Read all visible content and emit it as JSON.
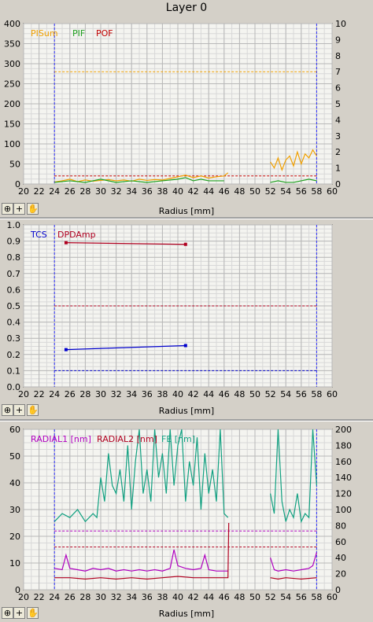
{
  "title": "Layer 0",
  "toolbar_icons": [
    "zoom-icon",
    "crosshair-icon",
    "hand-icon"
  ],
  "colors": {
    "pisum": "#f0a000",
    "pif": "#20a020",
    "pof": "#c00000",
    "tcs": "#0000cc",
    "dpdamp": "#b00020",
    "radial1": "#b000c0",
    "radial2": "#b00020",
    "fe": "#10a080",
    "limit_blue": "#3030ff",
    "grid": "#c0c0c0"
  },
  "chart_data": [
    {
      "type": "line",
      "xlabel": "Radius [mm]",
      "xlim": [
        20,
        60
      ],
      "xticks": [
        20,
        22,
        24,
        26,
        28,
        30,
        32,
        34,
        36,
        38,
        40,
        42,
        44,
        46,
        48,
        50,
        52,
        54,
        56,
        58,
        60
      ],
      "ylim_left": [
        0,
        400
      ],
      "yticks_left": [
        0,
        50,
        100,
        150,
        200,
        250,
        300,
        350,
        400
      ],
      "ylim_right": [
        0,
        10
      ],
      "yticks_right": [
        0,
        1,
        2,
        3,
        4,
        5,
        6,
        7,
        8,
        9,
        10
      ],
      "legend": [
        "PISum",
        "PIF",
        "POF"
      ],
      "vlines": [
        24,
        58
      ],
      "hlines": [
        {
          "value": 280,
          "series": "PISum"
        },
        {
          "value": 20,
          "series": "POF"
        }
      ],
      "series": [
        {
          "name": "PISum",
          "axis": "left",
          "segments": [
            {
              "x": [
                24,
                25,
                26,
                27,
                28,
                29,
                30,
                31,
                32,
                33,
                34,
                35,
                36,
                37,
                38,
                39,
                40,
                41,
                42,
                43,
                44,
                45,
                46,
                46.5
              ],
              "y": [
                5,
                8,
                12,
                6,
                10,
                7,
                9,
                11,
                8,
                10,
                7,
                12,
                9,
                11,
                10,
                14,
                18,
                22,
                16,
                20,
                15,
                18,
                20,
                28
              ]
            },
            {
              "x": [
                52,
                52.5,
                53,
                53.5,
                54,
                54.5,
                55,
                55.5,
                56,
                56.5,
                57,
                57.5,
                58
              ],
              "y": [
                55,
                40,
                65,
                35,
                60,
                70,
                45,
                80,
                50,
                75,
                65,
                85,
                70
              ]
            }
          ]
        },
        {
          "name": "PIF",
          "axis": "right",
          "segments": [
            {
              "x": [
                24,
                26,
                28,
                30,
                32,
                34,
                36,
                38,
                40,
                41,
                42,
                43,
                44,
                46
              ],
              "y": [
                0.1,
                0.2,
                0.1,
                0.3,
                0.1,
                0.2,
                0.1,
                0.2,
                0.3,
                0.4,
                0.2,
                0.3,
                0.2,
                0.2
              ]
            },
            {
              "x": [
                52,
                53,
                54,
                55,
                56,
                57,
                58
              ],
              "y": [
                0.1,
                0.2,
                0.1,
                0.1,
                0.2,
                0.3,
                0.2
              ]
            }
          ]
        }
      ]
    },
    {
      "type": "line",
      "xlabel": "Radius [mm]",
      "xlim": [
        20,
        60
      ],
      "xticks": [
        20,
        22,
        24,
        26,
        28,
        30,
        32,
        34,
        36,
        38,
        40,
        42,
        44,
        46,
        48,
        50,
        52,
        54,
        56,
        58,
        60
      ],
      "ylim": [
        0,
        1.0
      ],
      "yticks": [
        "0.0",
        "0.1",
        "0.2",
        "0.3",
        "0.4",
        "0.5",
        "0.6",
        "0.7",
        "0.8",
        "0.9",
        "1.0"
      ],
      "legend": [
        "TCS",
        "DPDAmp"
      ],
      "vlines": [
        24,
        58
      ],
      "hlines": [
        {
          "value": 0.1,
          "series": "TCS"
        },
        {
          "value": 0.5,
          "series": "DPDAmp"
        }
      ],
      "series": [
        {
          "name": "TCS",
          "x": [
            25.5,
            41
          ],
          "y": [
            0.23,
            0.255
          ]
        },
        {
          "name": "DPDAmp",
          "x": [
            25.5,
            41
          ],
          "y": [
            0.89,
            0.88
          ]
        }
      ]
    },
    {
      "type": "line",
      "xlabel": "Radius [mm]",
      "xlim": [
        20,
        60
      ],
      "xticks": [
        20,
        22,
        24,
        26,
        28,
        30,
        32,
        34,
        36,
        38,
        40,
        42,
        44,
        46,
        48,
        50,
        52,
        54,
        56,
        58,
        60
      ],
      "ylim_left": [
        0,
        60
      ],
      "yticks_left": [
        0,
        10,
        20,
        30,
        40,
        50,
        60
      ],
      "ylim_right": [
        0,
        200
      ],
      "yticks_right": [
        0,
        20,
        40,
        60,
        80,
        100,
        120,
        140,
        160,
        180,
        200
      ],
      "legend": [
        "RADIAL1 [nm]",
        "RADIAL2 [nm]",
        "FE [nm]"
      ],
      "vlines": [
        24,
        58
      ],
      "hlines": [
        {
          "value": 22,
          "series": "RADIAL1 [nm]"
        },
        {
          "value": 16,
          "series": "RADIAL2 [nm]"
        }
      ],
      "series": [
        {
          "name": "RADIAL1 [nm]",
          "axis": "left",
          "segments": [
            {
              "x": [
                24,
                25,
                25.5,
                26,
                27,
                28,
                29,
                30,
                31,
                32,
                33,
                34,
                35,
                36,
                37,
                38,
                39,
                39.5,
                40,
                41,
                42,
                43,
                43.5,
                44,
                45,
                46,
                46.5
              ],
              "y": [
                8,
                7.5,
                13,
                8,
                7.5,
                7,
                8,
                7.5,
                8,
                7,
                7.5,
                7,
                7.5,
                7,
                7.5,
                7,
                8,
                15,
                9,
                8,
                7.5,
                8,
                13,
                7.5,
                7,
                7,
                7
              ]
            },
            {
              "x": [
                52,
                52.5,
                53,
                54,
                55,
                56,
                57,
                57.5,
                58
              ],
              "y": [
                12,
                7.5,
                7,
                7.5,
                7,
                7.5,
                8,
                9,
                14
              ]
            }
          ]
        },
        {
          "name": "RADIAL2 [nm]",
          "axis": "left",
          "segments": [
            {
              "x": [
                24,
                26,
                28,
                30,
                32,
                34,
                36,
                38,
                40,
                42,
                44,
                46,
                46.5,
                46.6
              ],
              "y": [
                4.5,
                4.5,
                4,
                4.5,
                4,
                4.5,
                4,
                4.5,
                5,
                4.5,
                4.5,
                4.5,
                4.5,
                25
              ]
            },
            {
              "x": [
                52,
                53,
                54,
                56,
                58
              ],
              "y": [
                4.5,
                4,
                4.5,
                4,
                4.5
              ]
            }
          ]
        },
        {
          "name": "FE [nm]",
          "axis": "right",
          "segments": [
            {
              "x": [
                24,
                25,
                26,
                27,
                28,
                29,
                29.5,
                30,
                30.5,
                31,
                31.5,
                32,
                32.5,
                33,
                33.5,
                34,
                34.5,
                35,
                35.5,
                36,
                36.5,
                37,
                37.5,
                38,
                38.5,
                39,
                39.5,
                40,
                40.5,
                41,
                41.5,
                42,
                42.5,
                43,
                43.5,
                44,
                44.5,
                45,
                45.5,
                46,
                46.5
              ],
              "y": [
                85,
                95,
                90,
                100,
                85,
                95,
                90,
                140,
                110,
                170,
                130,
                120,
                150,
                110,
                180,
                100,
                160,
                200,
                120,
                150,
                110,
                200,
                140,
                170,
                120,
                200,
                130,
                180,
                200,
                110,
                160,
                130,
                190,
                100,
                170,
                120,
                150,
                110,
                200,
                95,
                90
              ]
            },
            {
              "x": [
                52,
                52.5,
                53,
                53.5,
                54,
                54.5,
                55,
                55.5,
                56,
                56.5,
                57,
                57.5,
                58
              ],
              "y": [
                120,
                95,
                200,
                110,
                85,
                100,
                90,
                120,
                85,
                95,
                90,
                200,
                130
              ]
            }
          ]
        }
      ]
    }
  ]
}
